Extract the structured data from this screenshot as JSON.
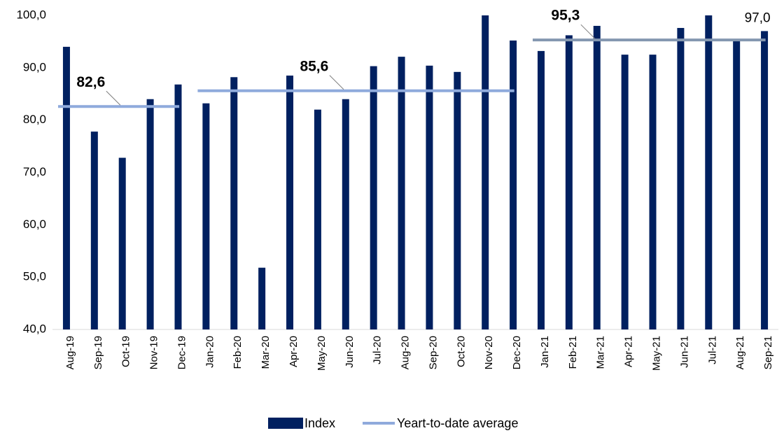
{
  "chart_data": {
    "type": "bar",
    "categories": [
      "Aug-19",
      "Sep-19",
      "Oct-19",
      "Nov-19",
      "Dec-19",
      "Jan-20",
      "Feb-20",
      "Mar-20",
      "Apr-20",
      "May-20",
      "Jun-20",
      "Jul-20",
      "Aug-20",
      "Sep-20",
      "Oct-20",
      "Nov-20",
      "Dec-20",
      "Jan-21",
      "Feb-21",
      "Mar-21",
      "Apr-21",
      "May-21",
      "Jun-21",
      "Jul-21",
      "Aug-21",
      "Sep-21"
    ],
    "series": [
      {
        "name": "Index",
        "type": "bar",
        "color": "#002060",
        "values": [
          94.0,
          77.8,
          72.8,
          84.0,
          86.8,
          83.2,
          88.2,
          51.8,
          88.5,
          82.0,
          84.0,
          90.3,
          92.1,
          90.4,
          89.2,
          100.0,
          95.2,
          93.2,
          96.2,
          98.0,
          92.5,
          92.5,
          97.6,
          100.0,
          95.3,
          97.0
        ],
        "value_labels": [
          null,
          null,
          null,
          null,
          null,
          null,
          null,
          null,
          null,
          null,
          null,
          null,
          null,
          null,
          null,
          null,
          null,
          null,
          null,
          null,
          null,
          null,
          null,
          null,
          null,
          "97,0"
        ],
        "label_color": "#ff0000"
      },
      {
        "name": "Yeart-to-date average",
        "type": "line",
        "color": "#8faadc",
        "colors": [
          "#8faadc",
          "#8faadc",
          "#8497b0"
        ],
        "values": [
          82.6,
          82.6,
          82.6,
          82.6,
          82.6,
          85.6,
          85.6,
          85.6,
          85.6,
          85.6,
          85.6,
          85.6,
          85.6,
          85.6,
          85.6,
          85.6,
          85.6,
          95.3,
          95.3,
          95.3,
          95.3,
          95.3,
          95.3,
          95.3,
          95.3,
          95.3
        ],
        "value_labels": [
          null,
          "82,6",
          null,
          null,
          null,
          null,
          null,
          null,
          null,
          "85,6",
          null,
          null,
          null,
          null,
          null,
          null,
          null,
          null,
          "95,3",
          null,
          null,
          null,
          null,
          null,
          null,
          null
        ]
      }
    ],
    "ylim": [
      40,
      100
    ],
    "yticks": [
      {
        "value": 40,
        "label": "40,0"
      },
      {
        "value": 50,
        "label": "50,0"
      },
      {
        "value": 60,
        "label": "60,0"
      },
      {
        "value": 70,
        "label": "70,0"
      },
      {
        "value": 80,
        "label": "80,0"
      },
      {
        "value": 90,
        "label": "90,0"
      },
      {
        "value": 100,
        "label": "100,0"
      }
    ],
    "legend": "bottom"
  }
}
